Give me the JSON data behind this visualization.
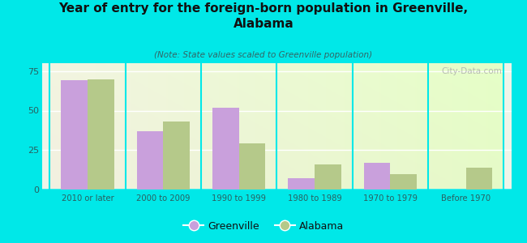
{
  "title": "Year of entry for the foreign-born population in Greenville,\nAlabama",
  "subtitle": "(Note: State values scaled to Greenville population)",
  "categories": [
    "2010 or later",
    "2000 to 2009",
    "1990 to 1999",
    "1980 to 1989",
    "1970 to 1979",
    "Before 1970"
  ],
  "greenville": [
    69,
    37,
    52,
    7,
    17,
    0
  ],
  "alabama": [
    70,
    43,
    29,
    16,
    10,
    14
  ],
  "greenville_color": "#c9a0dc",
  "alabama_color": "#b5c98a",
  "background_color": "#00e8e8",
  "plot_bg": "#f0f4e8",
  "ylim": [
    0,
    80
  ],
  "yticks": [
    0,
    25,
    50,
    75
  ],
  "bar_width": 0.35,
  "legend_greenville": "Greenville",
  "legend_alabama": "Alabama",
  "watermark": "City-Data.com"
}
